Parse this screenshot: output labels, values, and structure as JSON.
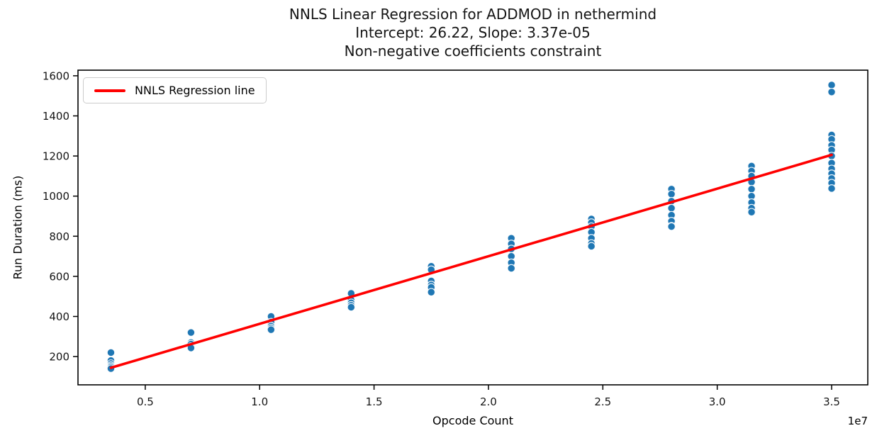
{
  "colors": {
    "scatter": "#1f77b4",
    "scatter_edge": "#ffffff",
    "regression_line": "#ff0000",
    "spine": "#000000",
    "legend_border": "#cccccc",
    "text": "#151515"
  },
  "chart_data": {
    "type": "scatter",
    "title_line1": "NNLS Linear Regression for ADDMOD in nethermind",
    "title_line2": "Intercept: 26.22, Slope: 3.37e-05",
    "title_line3": "Non-negative coefficients constraint",
    "xlabel": "Opcode Count",
    "ylabel": "Run Duration (ms)",
    "x_offset_text": "1e7",
    "legend_label": "NNLS Regression line",
    "legend_position": "upper left",
    "grid": false,
    "xlim": [
      2060000,
      36580000
    ],
    "ylim": [
      59,
      1628
    ],
    "x_ticks": [
      5000000,
      10000000,
      15000000,
      20000000,
      25000000,
      30000000,
      35000000
    ],
    "x_tick_labels": [
      "0.5",
      "1.0",
      "1.5",
      "2.0",
      "2.5",
      "3.0",
      "3.5"
    ],
    "y_ticks": [
      200,
      400,
      600,
      800,
      1000,
      1200,
      1400,
      1600
    ],
    "y_tick_labels": [
      "200",
      "400",
      "600",
      "800",
      "1000",
      "1200",
      "1400",
      "1600"
    ],
    "regression": {
      "intercept": 26.22,
      "slope": 3.37e-05,
      "x_start": 3500000,
      "x_end": 35000000
    },
    "series": [
      {
        "name": "run durations",
        "points": [
          [
            3500000,
            220
          ],
          [
            3500000,
            180
          ],
          [
            3500000,
            165
          ],
          [
            3500000,
            155
          ],
          [
            3500000,
            148
          ],
          [
            3500000,
            140
          ],
          [
            7000000,
            320
          ],
          [
            7000000,
            270
          ],
          [
            7000000,
            262
          ],
          [
            7000000,
            250
          ],
          [
            7000000,
            243
          ],
          [
            10500000,
            400
          ],
          [
            10500000,
            372
          ],
          [
            10500000,
            352
          ],
          [
            10500000,
            342
          ],
          [
            10500000,
            334
          ],
          [
            14000000,
            515
          ],
          [
            14000000,
            482
          ],
          [
            14000000,
            468
          ],
          [
            14000000,
            456
          ],
          [
            14000000,
            446
          ],
          [
            17500000,
            650
          ],
          [
            17500000,
            633
          ],
          [
            17500000,
            577
          ],
          [
            17500000,
            557
          ],
          [
            17500000,
            545
          ],
          [
            17500000,
            521
          ],
          [
            21000000,
            790
          ],
          [
            21000000,
            762
          ],
          [
            21000000,
            737
          ],
          [
            21000000,
            700
          ],
          [
            21000000,
            668
          ],
          [
            21000000,
            640
          ],
          [
            24500000,
            886
          ],
          [
            24500000,
            868
          ],
          [
            24500000,
            848
          ],
          [
            24500000,
            820
          ],
          [
            24500000,
            790
          ],
          [
            24500000,
            764
          ],
          [
            24500000,
            750
          ],
          [
            28000000,
            1035
          ],
          [
            28000000,
            1010
          ],
          [
            28000000,
            975
          ],
          [
            28000000,
            940
          ],
          [
            28000000,
            905
          ],
          [
            28000000,
            875
          ],
          [
            28000000,
            850
          ],
          [
            28000000,
            848
          ],
          [
            31500000,
            1150
          ],
          [
            31500000,
            1125
          ],
          [
            31500000,
            1100
          ],
          [
            31500000,
            1070
          ],
          [
            31500000,
            1035
          ],
          [
            31500000,
            1000
          ],
          [
            31500000,
            968
          ],
          [
            31500000,
            940
          ],
          [
            31500000,
            920
          ],
          [
            35000000,
            1554
          ],
          [
            35000000,
            1519
          ],
          [
            35000000,
            1305
          ],
          [
            35000000,
            1283
          ],
          [
            35000000,
            1253
          ],
          [
            35000000,
            1230
          ],
          [
            35000000,
            1200
          ],
          [
            35000000,
            1165
          ],
          [
            35000000,
            1136
          ],
          [
            35000000,
            1112
          ],
          [
            35000000,
            1088
          ],
          [
            35000000,
            1065
          ],
          [
            35000000,
            1038
          ]
        ]
      }
    ]
  }
}
